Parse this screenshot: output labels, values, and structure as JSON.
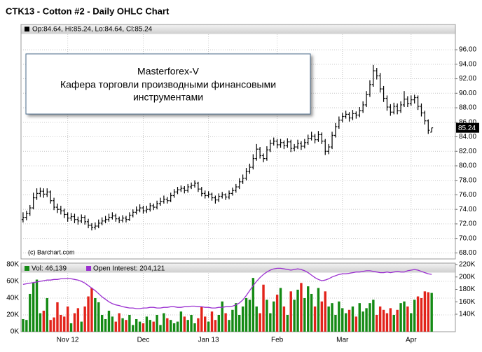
{
  "title": "CTK13 - Cotton #2 - Daily OHLC Chart",
  "chart_data": [
    {
      "type": "ohlc",
      "legend": "Op:84.64, Hi:85.24, Lo:84.64, Cl:85.24",
      "credit": "(c) Barchart.com",
      "annotation": [
        "Masterforex-V",
        "Кафера торговли производными финансовыми",
        "инструментами"
      ],
      "color": "#000000",
      "grid": true,
      "ylim": [
        67.17,
        98.13
      ],
      "yticks": [
        {
          "value": 68,
          "label": "68.00"
        },
        {
          "value": 70,
          "label": "70.00"
        },
        {
          "value": 72,
          "label": "72.00"
        },
        {
          "value": 74,
          "label": "74.00"
        },
        {
          "value": 76,
          "label": "76.00"
        },
        {
          "value": 78,
          "label": "78.00"
        },
        {
          "value": 80,
          "label": "80.00"
        },
        {
          "value": 82,
          "label": "82.00"
        },
        {
          "value": 84,
          "label": "84.00"
        },
        {
          "value": 86,
          "label": "86.00"
        },
        {
          "value": 88,
          "label": "88.00"
        },
        {
          "value": 90,
          "label": "90.00"
        },
        {
          "value": 92,
          "label": "92.00"
        },
        {
          "value": 94,
          "label": "94.00"
        },
        {
          "value": 96,
          "label": "96.00"
        }
      ],
      "open": [
        72.6,
        72.9,
        73.4,
        74.2,
        75.6,
        76.2,
        76.5,
        76.1,
        76.4,
        75.2,
        74.3,
        74.0,
        73.8,
        73.3,
        72.8,
        73.0,
        72.6,
        72.4,
        72.9,
        72.3,
        71.8,
        71.5,
        71.7,
        72.1,
        72.4,
        72.6,
        72.9,
        73.1,
        72.7,
        72.5,
        72.8,
        72.6,
        73.2,
        73.6,
        73.9,
        74.2,
        73.8,
        74.0,
        74.5,
        74.3,
        74.8,
        75.1,
        75.4,
        75.2,
        75.9,
        76.4,
        76.7,
        76.9,
        76.6,
        77.1,
        77.3,
        77.6,
        76.8,
        76.2,
        75.9,
        76.1,
        75.6,
        75.3,
        75.8,
        76.0,
        75.7,
        76.2,
        76.6,
        77.1,
        77.8,
        78.3,
        79.2,
        79.8,
        81.0,
        82.3,
        81.4,
        81.0,
        82.2,
        83.1,
        83.4,
        82.9,
        83.2,
        82.8,
        83.3,
        82.4,
        82.6,
        83.1,
        82.7,
        83.2,
        83.8,
        84.1,
        83.6,
        84.3,
        83.4,
        82.0,
        82.6,
        84.2,
        85.4,
        86.3,
        86.8,
        87.1,
        86.6,
        87.2,
        87.0,
        87.6,
        88.4,
        89.8,
        91.2,
        93.1,
        92.4,
        90.6,
        89.3,
        88.1,
        87.4,
        88.2,
        87.6,
        88.4,
        89.2,
        88.6,
        89.1,
        89.4,
        88.2,
        87.3,
        86.2,
        84.64
      ],
      "high": [
        73.6,
        73.8,
        74.6,
        76.3,
        76.9,
        77.0,
        76.9,
        76.9,
        76.6,
        75.6,
        74.8,
        74.5,
        74.1,
        73.6,
        73.5,
        73.4,
        73.0,
        73.3,
        73.2,
        72.7,
        72.1,
        72.2,
        72.6,
        72.9,
        73.1,
        73.4,
        73.6,
        73.4,
        73.0,
        73.2,
        73.1,
        73.6,
        74.0,
        74.4,
        74.7,
        74.5,
        74.5,
        74.9,
        74.8,
        75.2,
        75.6,
        75.9,
        75.7,
        76.3,
        76.8,
        77.1,
        77.3,
        77.2,
        77.5,
        77.7,
        78.0,
        77.8,
        77.1,
        76.6,
        76.5,
        76.3,
        75.9,
        76.2,
        76.4,
        76.2,
        76.6,
        77.0,
        77.5,
        78.3,
        78.8,
        79.7,
        80.3,
        81.6,
        83.0,
        82.6,
        81.7,
        82.7,
        83.6,
        83.9,
        83.7,
        83.7,
        83.5,
        83.8,
        83.6,
        83.0,
        83.6,
        83.4,
        83.7,
        84.3,
        84.7,
        84.4,
        84.8,
        84.6,
        83.7,
        83.0,
        84.7,
        85.9,
        86.8,
        87.3,
        87.6,
        87.4,
        87.7,
        87.5,
        88.1,
        88.9,
        90.3,
        91.8,
        93.9,
        93.5,
        92.8,
        91.0,
        89.7,
        88.5,
        88.7,
        88.6,
        88.9,
        90.3,
        89.6,
        89.7,
        89.8,
        89.7,
        88.6,
        87.6,
        86.4,
        85.24
      ],
      "low": [
        72.2,
        72.5,
        73.1,
        74.0,
        75.3,
        75.7,
        75.6,
        75.7,
        74.8,
        73.9,
        73.5,
        73.3,
        72.8,
        72.3,
        72.4,
        72.1,
        71.9,
        72.1,
        71.9,
        71.4,
        71.1,
        71.2,
        71.4,
        71.8,
        72.1,
        72.3,
        72.6,
        72.3,
        72.1,
        72.2,
        72.2,
        72.4,
        72.9,
        73.3,
        73.6,
        73.4,
        73.5,
        73.7,
        73.9,
        74.0,
        74.5,
        74.8,
        74.8,
        75.0,
        75.6,
        76.1,
        76.4,
        76.2,
        76.3,
        76.8,
        77.0,
        76.4,
        75.8,
        75.5,
        75.6,
        75.2,
        74.8,
        75.0,
        75.5,
        75.3,
        75.4,
        75.9,
        76.3,
        76.8,
        77.5,
        78.0,
        78.9,
        79.5,
        80.7,
        81.0,
        80.5,
        80.7,
        81.9,
        82.8,
        82.4,
        82.5,
        82.3,
        82.5,
        81.9,
        82.0,
        82.3,
        82.2,
        82.4,
        82.9,
        83.5,
        83.1,
        83.3,
        83.0,
        81.5,
        81.6,
        82.3,
        83.9,
        85.1,
        86.0,
        86.5,
        86.1,
        86.3,
        86.5,
        86.7,
        87.3,
        88.1,
        89.5,
        90.9,
        91.9,
        90.1,
        88.8,
        87.6,
        86.9,
        87.1,
        87.1,
        87.3,
        88.1,
        88.1,
        88.3,
        88.6,
        87.7,
        86.8,
        85.7,
        84.4,
        84.64
      ],
      "close": [
        72.9,
        73.4,
        74.2,
        75.6,
        76.2,
        76.5,
        76.1,
        76.4,
        75.2,
        74.3,
        74.0,
        73.8,
        73.3,
        72.8,
        73.0,
        72.6,
        72.4,
        72.9,
        72.3,
        71.8,
        71.5,
        71.7,
        72.1,
        72.4,
        72.6,
        72.9,
        73.1,
        72.7,
        72.5,
        72.8,
        72.6,
        73.2,
        73.6,
        73.9,
        74.2,
        73.8,
        74.0,
        74.5,
        74.3,
        74.8,
        75.1,
        75.4,
        75.2,
        75.9,
        76.4,
        76.7,
        76.9,
        76.6,
        77.1,
        77.3,
        77.6,
        76.8,
        76.2,
        75.9,
        76.1,
        75.6,
        75.3,
        75.8,
        76.0,
        75.7,
        76.2,
        76.6,
        77.1,
        77.8,
        78.3,
        79.2,
        79.8,
        81.0,
        82.3,
        81.4,
        81.0,
        82.2,
        83.1,
        83.4,
        82.9,
        83.2,
        82.8,
        83.3,
        82.4,
        82.6,
        83.1,
        82.7,
        83.2,
        83.8,
        84.1,
        83.6,
        84.3,
        83.4,
        82.0,
        82.6,
        84.2,
        85.4,
        86.3,
        86.8,
        87.1,
        86.6,
        87.2,
        87.0,
        87.6,
        88.4,
        89.8,
        91.2,
        93.1,
        92.4,
        90.6,
        89.3,
        88.1,
        87.4,
        88.2,
        87.6,
        88.4,
        89.2,
        88.6,
        89.1,
        89.4,
        88.2,
        87.3,
        86.2,
        84.9,
        85.24
      ]
    },
    {
      "type": "bar",
      "grid": true,
      "xlim": [
        -0.6,
        125.9
      ],
      "xticks": [
        {
          "value": 13,
          "label": "Nov 12"
        },
        {
          "value": 35,
          "label": "Dec"
        },
        {
          "value": 54,
          "label": "Jan 13"
        },
        {
          "value": 74,
          "label": "Feb"
        },
        {
          "value": 93,
          "label": "Mar"
        },
        {
          "value": 113,
          "label": "Apr"
        }
      ],
      "ylim": [
        0,
        81600
      ],
      "yticks": [
        {
          "value": 0,
          "label": "0K"
        },
        {
          "value": 20000,
          "label": "20K"
        },
        {
          "value": 40000,
          "label": "40K"
        },
        {
          "value": 60000,
          "label": "60K"
        },
        {
          "value": 80000,
          "label": "80K"
        }
      ],
      "y2lim": [
        111800,
        222300
      ],
      "y2ticks": [
        {
          "value": 140000,
          "label": "140K"
        },
        {
          "value": 160000,
          "label": "160K"
        },
        {
          "value": 180000,
          "label": "180K"
        },
        {
          "value": 200000,
          "label": "200K"
        },
        {
          "value": 220000,
          "label": "220K"
        }
      ],
      "series": [
        {
          "name": "Vol: 46,139",
          "color": "#148a14",
          "down_color": "#e2231a",
          "values": [
            15000,
            14000,
            45000,
            58000,
            62000,
            22000,
            25000,
            40000,
            14000,
            17000,
            35000,
            20000,
            18000,
            30000,
            10000,
            22000,
            28000,
            12000,
            30000,
            42000,
            52000,
            40000,
            35000,
            20000,
            15000,
            25000,
            18000,
            12000,
            22000,
            16000,
            14000,
            20000,
            8000,
            15000,
            12000,
            10000,
            18000,
            14000,
            12000,
            20000,
            8000,
            22000,
            16000,
            14000,
            10000,
            12000,
            24000,
            18000,
            14000,
            20000,
            10000,
            16000,
            30000,
            18000,
            12000,
            24000,
            14000,
            20000,
            36000,
            22000,
            14000,
            26000,
            34000,
            20000,
            30000,
            40000,
            38000,
            64000,
            30000,
            22000,
            56000,
            38000,
            22000,
            36000,
            44000,
            52000,
            30000,
            20000,
            48000,
            38000,
            50000,
            58000,
            40000,
            54000,
            45000,
            30000,
            52000,
            36000,
            48000,
            30000,
            34000,
            20000,
            36000,
            28000,
            22000,
            26000,
            30000,
            18000,
            34000,
            24000,
            28000,
            34000,
            38000,
            20000,
            30000,
            26000,
            22000,
            28000,
            20000,
            26000,
            34000,
            36000,
            30000,
            22000,
            38000,
            42000,
            40000,
            48000,
            47000,
            46139
          ]
        },
        {
          "name": "Open Interest: 204,121",
          "color": "#9b30d0",
          "axis": "y2",
          "type": "line",
          "values": [
            188000,
            189000,
            190000,
            191000,
            192000,
            193000,
            194000,
            195000,
            195000,
            196000,
            196000,
            197000,
            197000,
            198000,
            197000,
            196000,
            195000,
            193000,
            190000,
            186000,
            182000,
            178000,
            173000,
            168000,
            164000,
            160000,
            157000,
            155000,
            154000,
            152000,
            151000,
            150000,
            150000,
            149000,
            149000,
            150000,
            150000,
            151000,
            151000,
            150000,
            150000,
            151000,
            151000,
            152000,
            152000,
            151000,
            151000,
            152000,
            152000,
            153000,
            153000,
            152000,
            152000,
            151000,
            151000,
            150000,
            150000,
            151000,
            151000,
            152000,
            152000,
            153000,
            155000,
            158000,
            163000,
            170000,
            178000,
            186000,
            193000,
            199000,
            204000,
            208000,
            211000,
            213000,
            214000,
            214000,
            213000,
            212000,
            211000,
            212000,
            213000,
            212000,
            210000,
            207000,
            203000,
            199000,
            196000,
            194000,
            195000,
            197000,
            200000,
            202000,
            204000,
            205000,
            205000,
            206000,
            207000,
            208000,
            208000,
            209000,
            210000,
            210000,
            209000,
            208000,
            207000,
            207000,
            208000,
            207000,
            208000,
            209000,
            208000,
            208000,
            210000,
            211000,
            212000,
            211000,
            209000,
            207000,
            205000,
            204121
          ]
        }
      ]
    }
  ]
}
